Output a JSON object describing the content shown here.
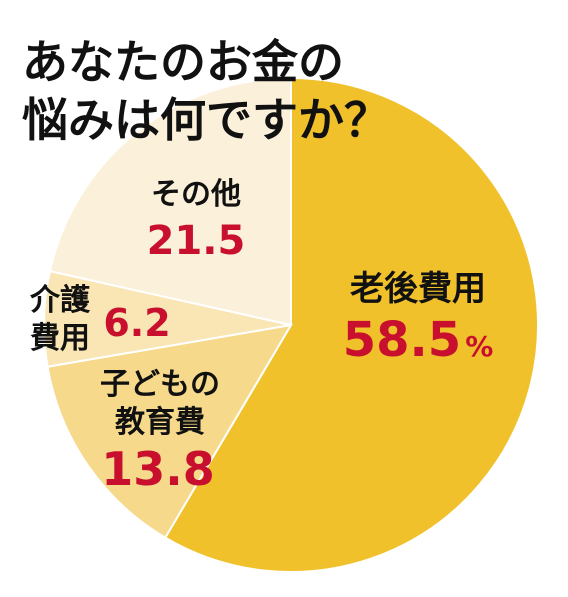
{
  "chart_data": {
    "type": "pie",
    "title": [
      "あなたのお金の",
      "悩みは何ですか？"
    ],
    "categories": [
      "老後費用",
      "子どもの教育費",
      "介護費用",
      "その他"
    ],
    "values": [
      58.5,
      13.8,
      6.2,
      21.5
    ],
    "value_labels": [
      "58.5",
      "13.8",
      "6.2",
      "21.5"
    ],
    "unit": "%",
    "colors": [
      "#f0c12b",
      "#f6d98a",
      "#f9e6b4",
      "#fbf0d9"
    ],
    "start": "12 o'clock",
    "direction": "clockwise",
    "legend": "none"
  }
}
